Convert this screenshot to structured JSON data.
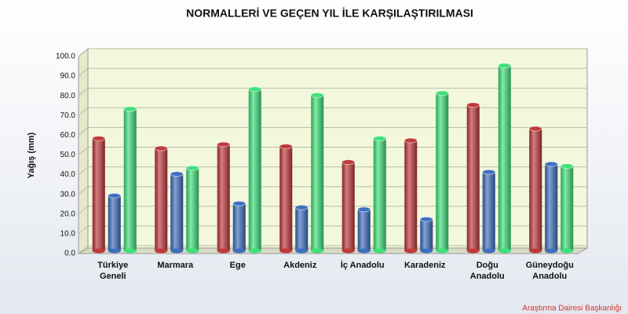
{
  "chart_data": {
    "type": "bar",
    "title": "NORMALLERİ VE GEÇEN YIL İLE KARŞILAŞTIRILMASI",
    "y_label": "Yağış (mm)",
    "footer": "Araştırma Dairesi Başkanlığı",
    "categories": [
      "Türkiye\nGeneli",
      "Marmara",
      "Ege",
      "Akdeniz",
      "İç Anadolu",
      "Karadeniz",
      "Doğu\nAnadolu",
      "Güneydoğu\nAnadolu"
    ],
    "series": [
      {
        "color": "#c0393b",
        "values": [
          57,
          52,
          54,
          53,
          45,
          56,
          74,
          62
        ]
      },
      {
        "color": "#3f6fbf",
        "values": [
          28,
          39,
          24,
          22,
          21,
          16,
          40,
          44
        ]
      },
      {
        "color": "#3fe07a",
        "values": [
          72,
          42,
          82,
          79,
          57,
          80,
          94,
          43
        ]
      }
    ],
    "ylim": [
      0,
      100
    ],
    "yticks": [
      {
        "value": 0,
        "label": "0.0"
      },
      {
        "value": 10,
        "label": "10.0"
      },
      {
        "value": 20,
        "label": "20.0"
      },
      {
        "value": 30,
        "label": "30.0"
      },
      {
        "value": 40,
        "label": "40.0"
      },
      {
        "value": 50,
        "label": "50.0"
      },
      {
        "value": 60,
        "label": "60.0"
      },
      {
        "value": 70,
        "label": "70.0"
      },
      {
        "value": 80,
        "label": "80.0"
      },
      {
        "value": 90,
        "label": "90.0"
      },
      {
        "value": 100,
        "label": "100.0"
      }
    ],
    "grid": true
  }
}
